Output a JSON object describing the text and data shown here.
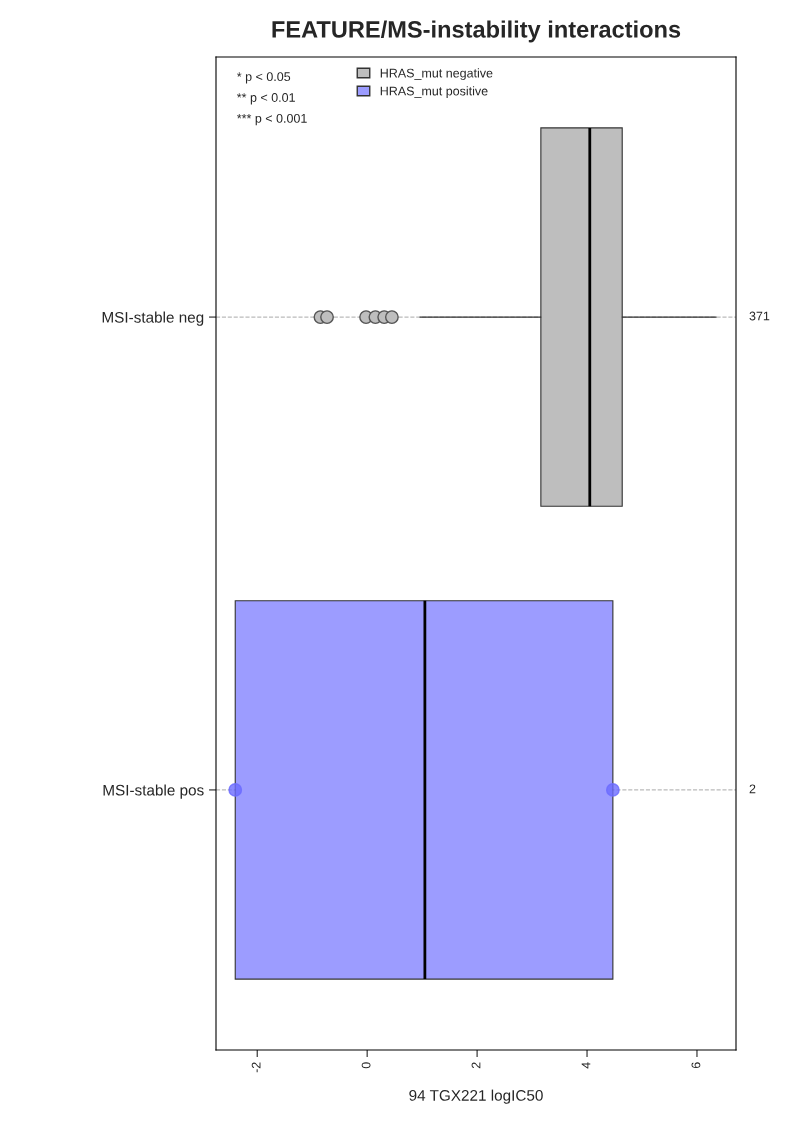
{
  "chart_data": {
    "type": "box",
    "orientation": "horizontal",
    "title": "FEATURE/MS-instability interactions",
    "xlabel": "94 TGX221 logIC50",
    "categories": [
      "MSI-stable neg",
      "MSI-stable pos"
    ],
    "series": [
      {
        "name": "HRAS_mut negative",
        "color": "#bebebe",
        "boxes": [
          {
            "low": 0.96,
            "q1": 3.16,
            "median": 4.05,
            "q3": 4.64,
            "high": 6.35,
            "outliers": [
              -0.85,
              -0.73,
              -0.02,
              0.15,
              0.31,
              0.45
            ]
          },
          null
        ]
      },
      {
        "name": "HRAS_mut positive",
        "color": "#9c9cff",
        "boxes": [
          null,
          {
            "low": -2.4,
            "q1": -2.4,
            "median": 1.05,
            "q3": 4.47,
            "high": 4.47
          }
        ]
      },
      {
        "type": "scatter",
        "color": "#6b6bff",
        "x": [
          "MSI-stable pos",
          "MSI-stable pos"
        ],
        "values": [
          -2.4,
          4.47
        ]
      }
    ],
    "xlim": [
      -2.75,
      6.71
    ],
    "xticks": [
      -2,
      0,
      2,
      4,
      6
    ],
    "grid": "y",
    "legend": "top left",
    "annotations": [
      "* p < 0.05",
      "** p < 0.01",
      "*** p < 0.001",
      "371",
      "2"
    ]
  }
}
